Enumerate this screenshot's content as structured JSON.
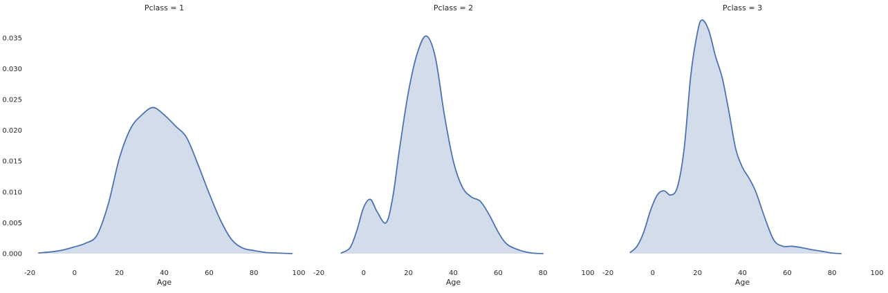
{
  "chart_data": [
    {
      "type": "area",
      "title": "Pclass = 1",
      "xlabel": "Age",
      "ylabel": "",
      "xlim": [
        -20,
        100
      ],
      "ylim": [
        0,
        0.038
      ],
      "x_ticks": [
        "-20",
        "0",
        "20",
        "40",
        "60",
        "80",
        "100"
      ],
      "y_ticks": [
        "0.000",
        "0.005",
        "0.010",
        "0.015",
        "0.020",
        "0.025",
        "0.030",
        "0.035"
      ],
      "grid": false,
      "series": [
        {
          "x": [
            -16,
            -10,
            -5,
            0,
            5,
            10,
            15,
            20,
            25,
            30,
            35,
            40,
            45,
            50,
            55,
            60,
            65,
            70,
            75,
            80,
            85,
            90,
            97
          ],
          "y": [
            0.0001,
            0.0003,
            0.0006,
            0.0011,
            0.0017,
            0.003,
            0.008,
            0.0155,
            0.0203,
            0.0225,
            0.0237,
            0.0225,
            0.0207,
            0.0188,
            0.0145,
            0.0098,
            0.0055,
            0.0023,
            0.0009,
            0.0005,
            0.0002,
            0.0001,
            0.0
          ]
        }
      ]
    },
    {
      "type": "area",
      "title": "Pclass = 2",
      "xlabel": "Age",
      "ylabel": "",
      "xlim": [
        -20,
        100
      ],
      "ylim": [
        0,
        0.038
      ],
      "x_ticks": [
        "-20",
        "0",
        "20",
        "40",
        "60",
        "80",
        "100"
      ],
      "y_ticks": [],
      "grid": false,
      "series": [
        {
          "x": [
            -10,
            -6,
            -3,
            0,
            3,
            6,
            10,
            13,
            16,
            20,
            24,
            28,
            32,
            36,
            40,
            44,
            48,
            52,
            56,
            60,
            64,
            70,
            75,
            80
          ],
          "y": [
            0.0001,
            0.001,
            0.0038,
            0.0075,
            0.0088,
            0.0068,
            0.005,
            0.0092,
            0.017,
            0.0263,
            0.0326,
            0.0353,
            0.0318,
            0.0225,
            0.015,
            0.0108,
            0.0092,
            0.0085,
            0.0063,
            0.0035,
            0.0015,
            0.0005,
            0.0001,
            0.0
          ]
        }
      ]
    },
    {
      "type": "area",
      "title": "Pclass = 3",
      "xlabel": "Age",
      "ylabel": "",
      "xlim": [
        -20,
        100
      ],
      "ylim": [
        0,
        0.038
      ],
      "x_ticks": [
        "-20",
        "0",
        "20",
        "40",
        "60",
        "80",
        "100"
      ],
      "y_ticks": [],
      "grid": false,
      "series": [
        {
          "x": [
            -10,
            -7,
            -4,
            -1,
            2,
            5,
            8,
            11,
            14,
            17,
            20,
            22,
            25,
            28,
            31,
            34,
            37,
            40,
            43,
            46,
            50,
            54,
            58,
            62,
            66,
            70,
            75,
            80,
            84
          ],
          "y": [
            0.0002,
            0.0012,
            0.0035,
            0.007,
            0.0095,
            0.0102,
            0.0095,
            0.0108,
            0.017,
            0.029,
            0.036,
            0.0379,
            0.0362,
            0.032,
            0.0285,
            0.023,
            0.017,
            0.014,
            0.0122,
            0.01,
            0.0058,
            0.0022,
            0.0012,
            0.0012,
            0.001,
            0.0007,
            0.0004,
            0.0001,
            0.0
          ]
        }
      ]
    }
  ],
  "style": {
    "line_color": "#4c72b0",
    "fill_color": "#4c72b0",
    "fill_opacity": 0.25
  }
}
